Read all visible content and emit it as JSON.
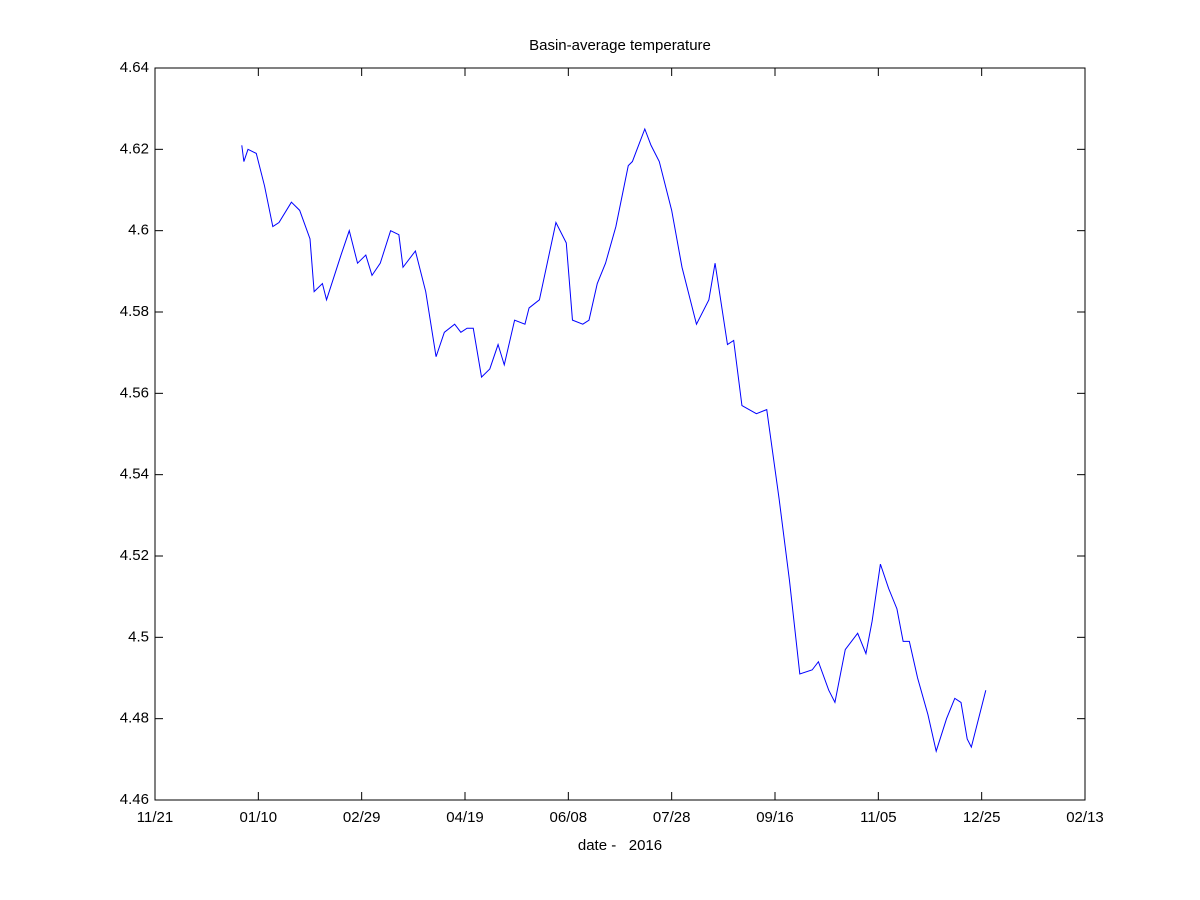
{
  "chart_data": {
    "type": "line",
    "title": "Basin-average temperature",
    "x_label": "date -   2016",
    "x": [
      2,
      3,
      5,
      9,
      13,
      17,
      20,
      26,
      30,
      35,
      37,
      41,
      43,
      50,
      54,
      58,
      62,
      65,
      69,
      74,
      78,
      80,
      86,
      91,
      96,
      100,
      105,
      108,
      111,
      114,
      118,
      122,
      126,
      129,
      134,
      139,
      141,
      146,
      154,
      159,
      162,
      167,
      170,
      174,
      178,
      183,
      189,
      191,
      197,
      200,
      204,
      210,
      215,
      222,
      228,
      231,
      237,
      240,
      244,
      251,
      256,
      262,
      267,
      272,
      278,
      281,
      286,
      289,
      294,
      300,
      304,
      307,
      311,
      315,
      319,
      322,
      325,
      329,
      334,
      338,
      343,
      347,
      350,
      353,
      355,
      362
    ],
    "series": [
      {
        "color": "#0000ff",
        "values": [
          4.621,
          4.617,
          4.62,
          4.619,
          4.611,
          4.601,
          4.602,
          4.607,
          4.605,
          4.598,
          4.585,
          4.587,
          4.583,
          4.594,
          4.6,
          4.592,
          4.594,
          4.589,
          4.592,
          4.6,
          4.599,
          4.591,
          4.595,
          4.585,
          4.569,
          4.575,
          4.577,
          4.575,
          4.576,
          4.576,
          4.564,
          4.566,
          4.572,
          4.567,
          4.578,
          4.577,
          4.581,
          4.583,
          4.602,
          4.597,
          4.578,
          4.577,
          4.578,
          4.587,
          4.592,
          4.601,
          4.616,
          4.617,
          4.625,
          4.621,
          4.617,
          4.605,
          4.591,
          4.577,
          4.583,
          4.592,
          4.572,
          4.573,
          4.557,
          4.555,
          4.556,
          4.534,
          4.514,
          4.491,
          4.492,
          4.494,
          4.487,
          4.484,
          4.497,
          4.501,
          4.496,
          4.504,
          4.518,
          4.512,
          4.507,
          4.499,
          4.499,
          4.49,
          4.481,
          4.472,
          4.48,
          4.485,
          4.484,
          4.475,
          4.473,
          4.487
        ]
      }
    ],
    "xlim": [
      -40,
      410
    ],
    "xticks": [
      {
        "value": -40,
        "label": "11/21"
      },
      {
        "value": 10,
        "label": "01/10"
      },
      {
        "value": 60,
        "label": "02/29"
      },
      {
        "value": 110,
        "label": "04/19"
      },
      {
        "value": 160,
        "label": "06/08"
      },
      {
        "value": 210,
        "label": "07/28"
      },
      {
        "value": 260,
        "label": "09/16"
      },
      {
        "value": 310,
        "label": "11/05"
      },
      {
        "value": 360,
        "label": "12/25"
      },
      {
        "value": 410,
        "label": "02/13"
      }
    ],
    "ylim": [
      4.46,
      4.64
    ],
    "yticks": [
      4.46,
      4.48,
      4.5,
      4.52,
      4.54,
      4.56,
      4.58,
      4.6,
      4.62,
      4.64
    ],
    "grid": false
  }
}
